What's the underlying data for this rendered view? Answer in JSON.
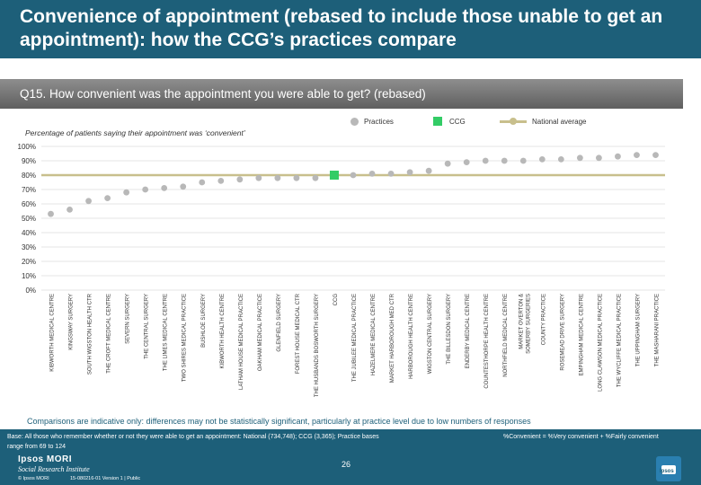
{
  "header": {
    "title": "Convenience of appointment (rebased to include those unable to get an appointment): how the CCG’s practices compare"
  },
  "question": "Q15. How convenient was the appointment you were able to get? (rebased)",
  "legend": {
    "practices": "Practices",
    "ccg": "CCG",
    "national": "National average"
  },
  "colors": {
    "practice": "#b8b8b8",
    "ccg": "#33cc66",
    "national": "#c8bf8c",
    "header": "#1d5f79"
  },
  "chart_data": {
    "type": "scatter",
    "title": "Percentage of patients saying their appointment was ‘convenient’",
    "ylim": [
      0,
      100
    ],
    "yticks": [
      "0%",
      "10%",
      "20%",
      "30%",
      "40%",
      "50%",
      "60%",
      "70%",
      "80%",
      "90%",
      "100%"
    ],
    "national_average": 80,
    "categories": [
      "KIBWORTH MEDICAL CENTRE",
      "KINGSWAY SURGERY",
      "SOUTH WIGSTON HEALTH CTR",
      "THE CROFT MEDICAL CENTRE",
      "SEVERN SURGERY",
      "THE CENTRAL SURGERY",
      "THE LIMES MEDICAL CENTRE",
      "TWO SHIRES MEDICAL PRACTICE",
      "BUSHLOE SURGERY",
      "KIBWORTH HEALTH CENTRE",
      "LATHAM HOUSE MEDICAL PRACTICE",
      "OAKHAM MEDICAL PRACTICE",
      "GLENFIELD SURGERY",
      "FOREST HOUSE MEDICAL CTR",
      "THE HUSBANDS BOSWORTH SURGERY",
      "CCG",
      "THE JUBILEE MEDICAL PRACTICE",
      "HAZELMERE MEDICAL CENTRE",
      "MARKET HARBOROUGH MED CTR",
      "HARBOROUGH HEALTH CENTRE",
      "WIGSTON CENTRAL SURGERY",
      "THE BILLESDON SURGERY",
      "ENDERBY MEDICAL CENTRE",
      "COUNTESTHORPE HEALTH CENTRE",
      "NORTHFIELD MEDICAL CENTRE",
      "MARKET OVERTON & SOMERBY SURGERIES",
      "COUNTY PRACTICE",
      "ROSEMEAD DRIVE SURGERY",
      "EMPINGHAM MEDICAL CENTRE",
      "LONG CLAWSON MEDICAL PRACTICE",
      "THE WYCLIFFE MEDICAL PRACTICE",
      "THE UPPINGHAM SURGERY",
      "THE MASHARANI PRACTICE"
    ],
    "values": [
      53,
      56,
      62,
      64,
      68,
      70,
      71,
      72,
      75,
      76,
      77,
      78,
      78,
      78,
      78,
      80,
      80,
      81,
      81,
      82,
      83,
      88,
      89,
      90,
      90,
      90,
      91,
      91,
      92,
      92,
      93,
      94,
      94
    ],
    "ccg_index": 15
  },
  "footer": {
    "comparison_note": "Comparisons are indicative only: differences may not be statistically significant, particularly at practice level due to low numbers of responses",
    "base": "Base: All those who remember whether or not they were able to get an appointment: National (734,748); CCG (3,365); Practice bases range from 69 to 124",
    "definition": "%Convenient = %Very convenient + %Fairly convenient",
    "page_number": "26",
    "logo_line1": "Ipsos MORI",
    "logo_line2": "Social Research Institute",
    "copyright": "© Ipsos MORI",
    "version": "15-080216-01 Version 1 | Public",
    "ipsos_badge": "Ipsos"
  }
}
